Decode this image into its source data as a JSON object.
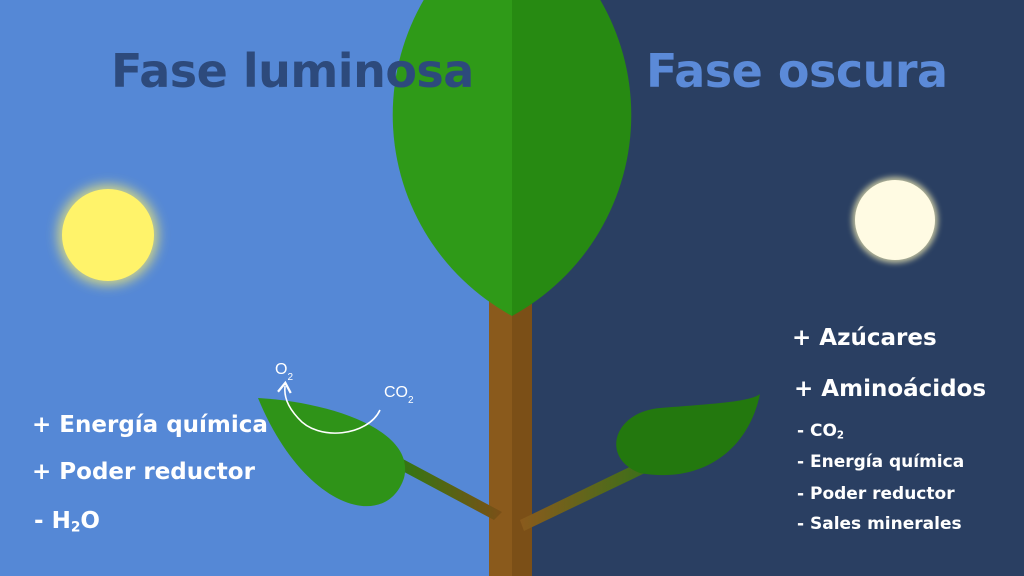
{
  "phases": {
    "light": {
      "title": "Fase luminosa",
      "items": [
        {
          "sign": "+",
          "text": "Energía química"
        },
        {
          "sign": "+",
          "text": "Poder reductor"
        },
        {
          "sign": "-",
          "text": "H",
          "sub": "2",
          "suffix": "O"
        }
      ]
    },
    "dark": {
      "title": "Fase oscura",
      "items": [
        {
          "sign": "+",
          "text": "Azúcares"
        },
        {
          "sign": "+",
          "text": "Aminoácidos"
        },
        {
          "sign": "-",
          "text": "CO",
          "sub": "2"
        },
        {
          "sign": "-",
          "text": "Energía química"
        },
        {
          "sign": "-",
          "text": "Poder reductor"
        },
        {
          "sign": "-",
          "text": "Sales minerales"
        }
      ]
    }
  },
  "gas_exchange": {
    "released": {
      "text": "O",
      "sub": "2"
    },
    "absorbed": {
      "text": "CO",
      "sub": "2"
    }
  },
  "colors": {
    "light_background": "#5588d6",
    "dark_background": "#2a3f62",
    "canopy_light": "#2f9a18",
    "canopy_dark": "#278a12",
    "trunk_light": "#8a5a1c",
    "trunk_dark": "#7b4f17",
    "leaf_light": "#2f9318",
    "leaf_dark": "#23780e",
    "sun": "#fff36a",
    "moon": "#fffbe3"
  }
}
